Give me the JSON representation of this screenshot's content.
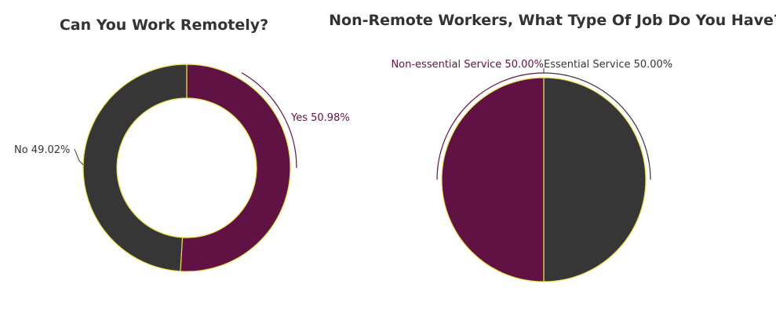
{
  "chart_data": [
    {
      "type": "pie",
      "title": "Can You Work Remotely?",
      "donut": true,
      "series": [
        {
          "slices": [
            {
              "label": "Yes",
              "value": 50.98,
              "display": "Yes 50.98%",
              "color": "#611245"
            },
            {
              "label": "No",
              "value": 49.02,
              "display": "No 49.02%",
              "color": "#363636"
            }
          ]
        }
      ],
      "stroke_color": "#e8e04a"
    },
    {
      "type": "pie",
      "title": "Non-Remote Workers, What Type Of Job Do You Have?",
      "donut": false,
      "series": [
        {
          "slices": [
            {
              "label": "Essential Service",
              "value": 50.0,
              "display": "Essential Service 50.00%",
              "color": "#363636"
            },
            {
              "label": "Non-essential Service",
              "value": 50.0,
              "display": "Non-essential Service 50.00%",
              "color": "#611245"
            }
          ]
        }
      ],
      "stroke_color": "#e8e04a"
    }
  ]
}
